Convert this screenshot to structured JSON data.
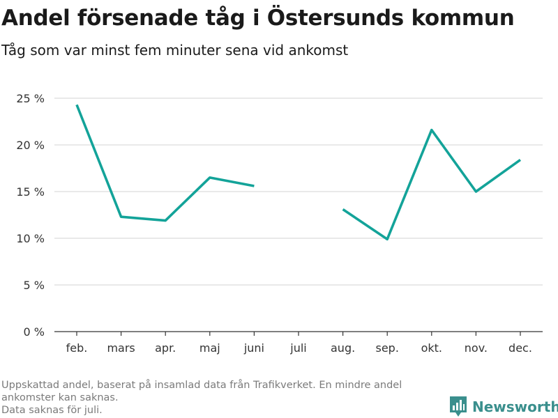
{
  "header": {
    "title": "Andel försenade tåg i Östersunds kommun",
    "subtitle": "Tåg som var minst fem minuter sena vid ankomst"
  },
  "footnote": {
    "line1": "Uppskattad andel, baserat på insamlad data från Trafikverket. En mindre andel",
    "line2": "ankomster kan saknas.",
    "line3": "Data saknas för juli."
  },
  "brand": {
    "name": "Newsworthy",
    "color": "#3a8f8d"
  },
  "chart_data": {
    "type": "line",
    "title": "Andel försenade tåg i Östersunds kommun",
    "subtitle": "Tåg som var minst fem minuter sena vid ankomst",
    "categories": [
      "feb.",
      "mars",
      "apr.",
      "maj",
      "juni",
      "juli",
      "aug.",
      "sep.",
      "okt.",
      "nov.",
      "dec."
    ],
    "series": [
      {
        "values": [
          24.3,
          12.3,
          11.9,
          16.5,
          15.6,
          null,
          13.1,
          9.9,
          21.6,
          15.0,
          18.4
        ],
        "color": "#13a399"
      }
    ],
    "ylim": [
      0,
      25
    ],
    "yticks": [
      0,
      5,
      10,
      15,
      20,
      25
    ],
    "ytick_labels": [
      "0 %",
      "5 %",
      "10 %",
      "15 %",
      "20 %",
      "25 %"
    ],
    "grid": true,
    "legend": "none"
  }
}
